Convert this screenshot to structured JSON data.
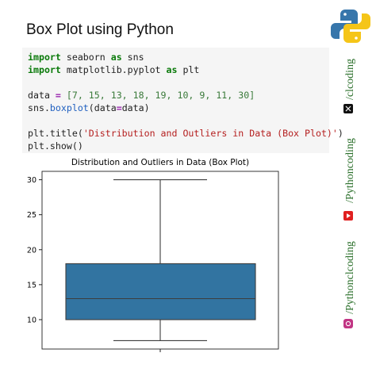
{
  "header": {
    "title": "Box Plot using Python"
  },
  "code": {
    "lines": [
      {
        "tokens": [
          {
            "text": "import",
            "color": "#0a7a0a",
            "bold": true
          },
          {
            "text": " seaborn "
          },
          {
            "text": "as",
            "color": "#0a7a0a",
            "bold": true
          },
          {
            "text": " sns"
          }
        ]
      },
      {
        "tokens": [
          {
            "text": "import",
            "color": "#0a7a0a",
            "bold": true
          },
          {
            "text": " matplotlib.pyplot "
          },
          {
            "text": "as",
            "color": "#0a7a0a",
            "bold": true
          },
          {
            "text": " plt"
          }
        ]
      },
      {
        "tokens": []
      },
      {
        "tokens": [
          {
            "text": "data "
          },
          {
            "text": "=",
            "color": "#9a27b0",
            "bold": true
          },
          {
            "text": " [7, 15, 13, 18, 19, 10, 9, 11, 30]",
            "color": "#3a7a3a"
          }
        ]
      },
      {
        "tokens": [
          {
            "text": "sns."
          },
          {
            "text": "boxplot",
            "color": "#2060c0"
          },
          {
            "text": "(data"
          },
          {
            "text": "=",
            "color": "#9a27b0",
            "bold": true
          },
          {
            "text": "data)"
          }
        ]
      },
      {
        "tokens": []
      },
      {
        "tokens": [
          {
            "text": "plt.title("
          },
          {
            "text": "'Distribution and Outliers in Data (Box Plot)'",
            "color": "#b52020"
          },
          {
            "text": ")"
          }
        ]
      },
      {
        "tokens": [
          {
            "text": "plt.show()"
          }
        ]
      }
    ]
  },
  "chart_data": {
    "type": "box",
    "title": "Distribution and Outliers in Data (Box Plot)",
    "stats": {
      "min": 7,
      "q1": 10,
      "median": 13,
      "q3": 18,
      "max": 30
    },
    "color": "#3274a1",
    "ylim": [
      5.8,
      31.2
    ],
    "yticks": [
      10,
      15,
      20,
      25,
      30
    ]
  },
  "side": {
    "links": [
      "/clcoding",
      "/Pythoncoding",
      "/Pythonclcoding"
    ]
  }
}
